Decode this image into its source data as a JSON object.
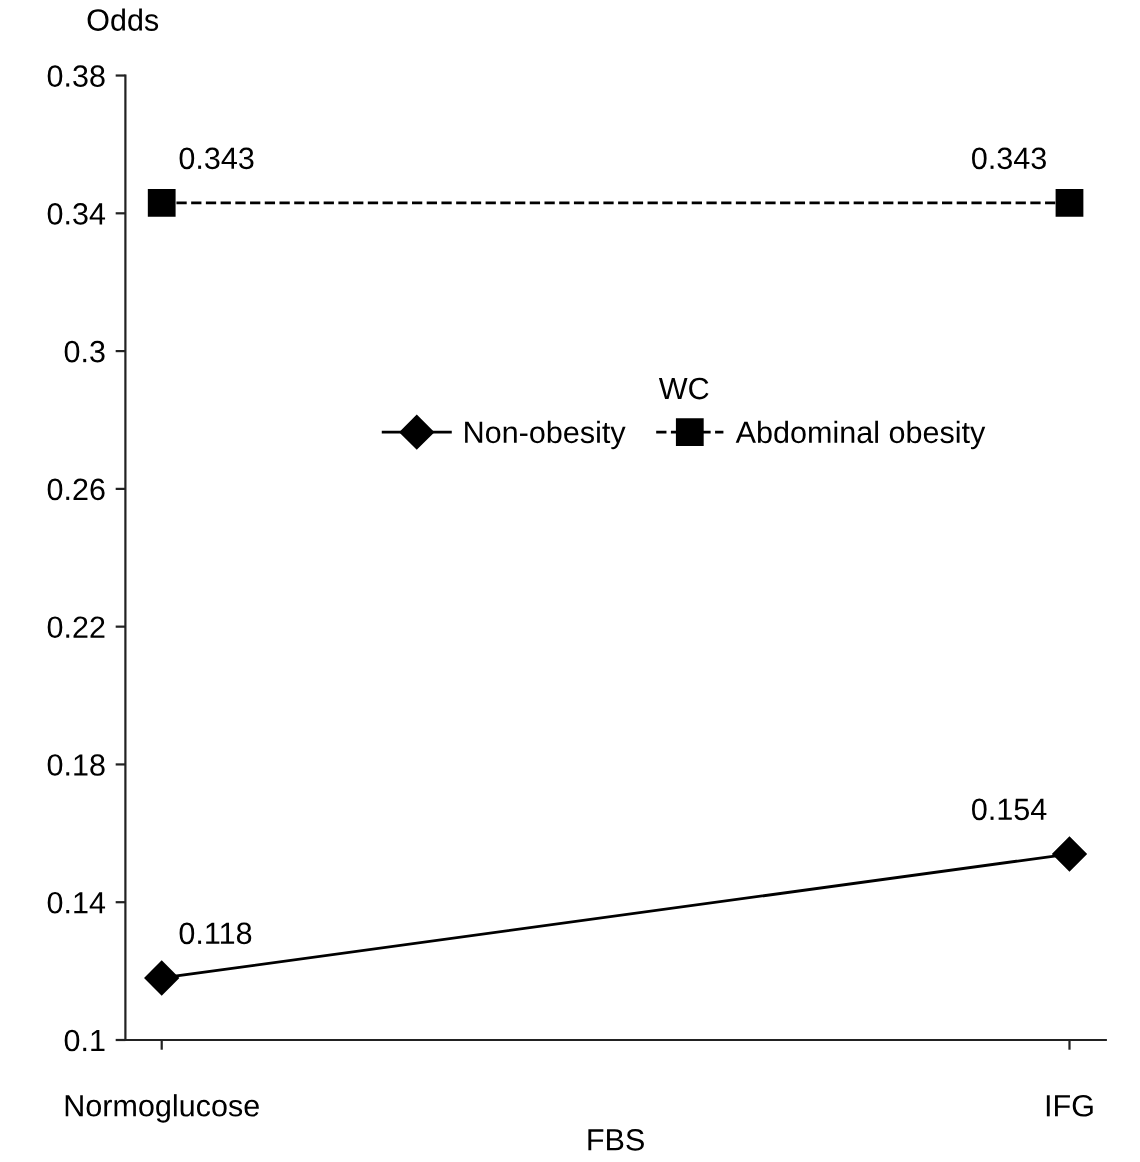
{
  "chart_data": {
    "type": "line",
    "ylabel": "Odds",
    "xlabel": "FBS",
    "legend_title": "WC",
    "categories": [
      "Normoglucose",
      "IFG"
    ],
    "series": [
      {
        "name": "Non-obesity",
        "color": "#000000",
        "values": [
          0.118,
          0.154
        ],
        "marker": "diamond",
        "line_style": "solid"
      },
      {
        "name": "Abdominal obesity",
        "color": "#000000",
        "values": [
          0.343,
          0.343
        ],
        "marker": "square",
        "line_style": "dashed"
      }
    ],
    "ylim": [
      0.1,
      0.38
    ],
    "yticks": [
      {
        "value": 0.1,
        "label": "0.1"
      },
      0.14,
      0.18,
      0.22,
      0.26,
      {
        "value": 0.3,
        "label": "0.3"
      },
      0.34,
      0.38
    ],
    "data_labels": true,
    "legend": "center",
    "grid": false
  }
}
